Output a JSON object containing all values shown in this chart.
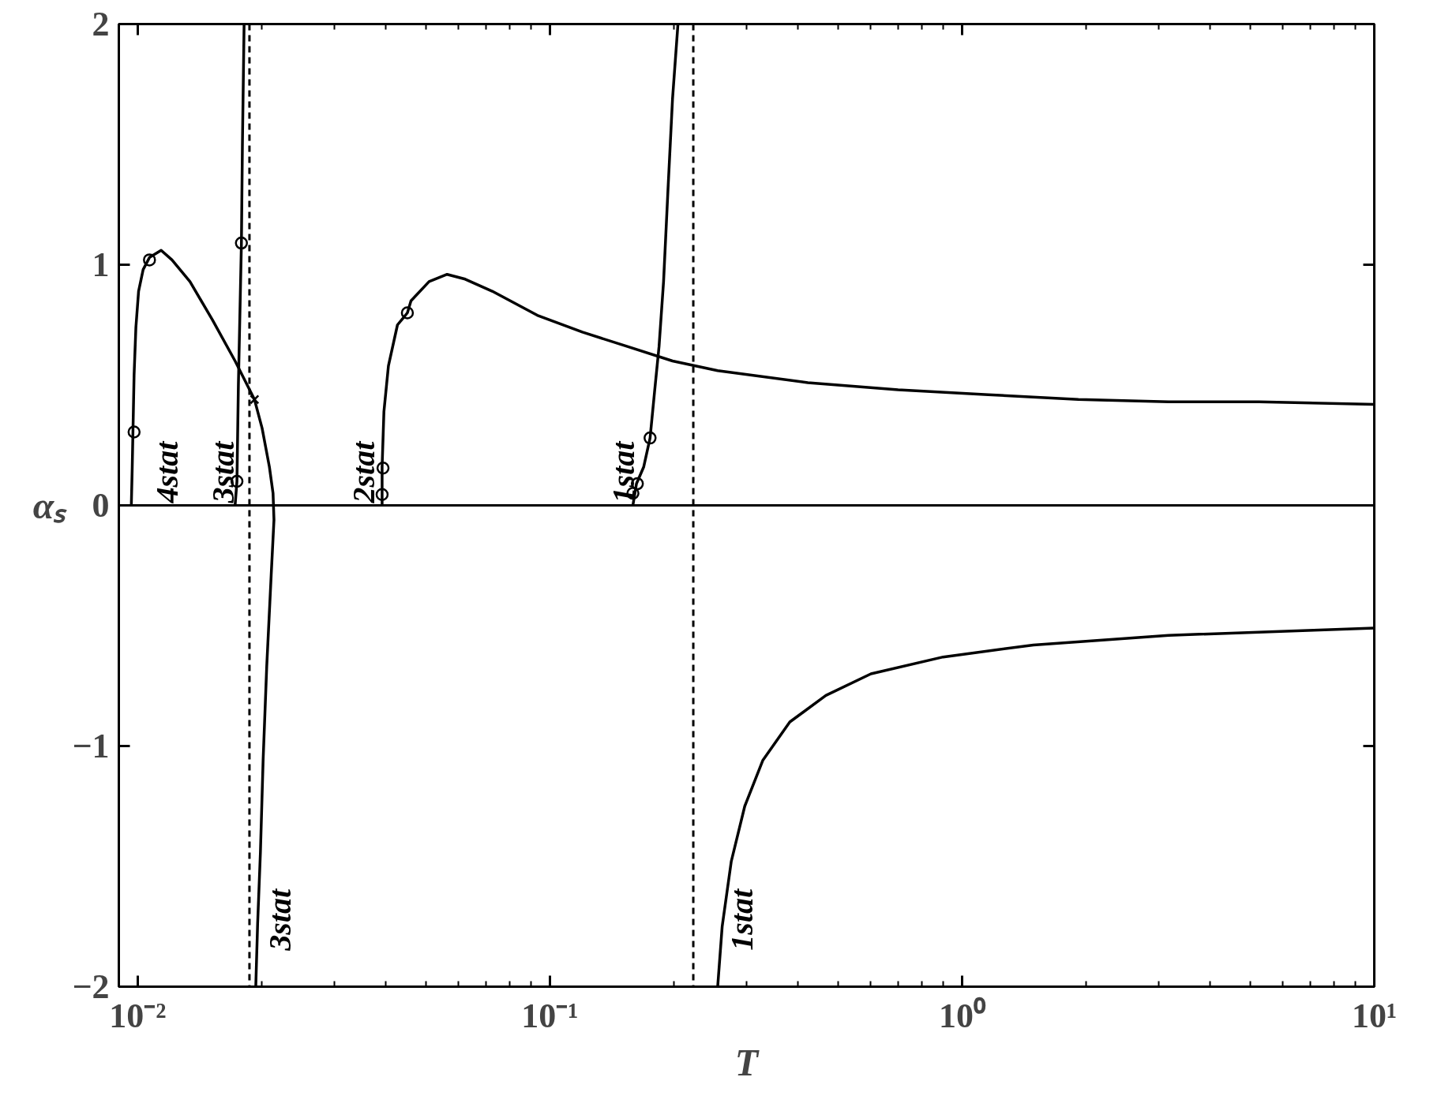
{
  "chart_data": {
    "type": "line",
    "xlabel": "T",
    "ylabel": "αₛ",
    "log": "x",
    "grid": false,
    "xlim": [
      0.009,
      10
    ],
    "ylim": [
      -2,
      2
    ],
    "xticks": [
      {
        "value": 0.01,
        "label": "10⁻²"
      },
      {
        "value": 0.1,
        "label": "10⁻¹"
      },
      {
        "value": 1,
        "label": "10⁰"
      },
      {
        "value": 10,
        "label": "10¹"
      }
    ],
    "yticks": [
      {
        "value": -2,
        "label": "−2"
      },
      {
        "value": -1,
        "label": "−1"
      },
      0,
      1,
      2
    ],
    "series": [
      {
        "color": "#000000",
        "marker": "none",
        "x": [
          0.00965,
          0.0097,
          0.00975,
          0.0098,
          0.0099,
          0.01005,
          0.01031,
          0.01068,
          0.0114,
          0.01211,
          0.01339,
          0.01519,
          0.01723,
          0.0192,
          0.02004,
          0.02087,
          0.0213,
          0.02141,
          0.02108,
          0.02056,
          0.02015,
          0.01985,
          0.01954,
          0.01934
        ],
        "values": [
          0,
          0.16,
          0.35,
          0.54,
          0.74,
          0.89,
          0.98,
          1.03,
          1.06,
          1.02,
          0.93,
          0.77,
          0.6,
          0.44,
          0.32,
          0.16,
          0.05,
          -0.06,
          -0.29,
          -0.67,
          -1.06,
          -1.44,
          -1.74,
          -2
        ]
      },
      {
        "color": "#000000",
        "marker": "none",
        "x": [
          0.01723,
          0.01741,
          0.01755,
          0.01785,
          0.01795,
          0.01812
        ],
        "values": [
          0,
          0.1,
          0.5,
          1.09,
          1.5,
          2
        ]
      },
      {
        "color": "#000000",
        "marker": "none",
        "x": [
          0.03917,
          0.03917,
          0.03957,
          0.04058,
          0.04268,
          0.04511,
          0.04603,
          0.05092,
          0.05632,
          0.0623,
          0.07244,
          0.09318,
          0.1199,
          0.1542,
          0.1984,
          0.2553,
          0.4225,
          0.6994,
          1.157,
          1.915,
          3.17,
          5.247,
          10
        ],
        "values": [
          0,
          0.16,
          0.39,
          0.58,
          0.75,
          0.8,
          0.85,
          0.93,
          0.96,
          0.94,
          0.89,
          0.79,
          0.72,
          0.66,
          0.6,
          0.56,
          0.51,
          0.48,
          0.46,
          0.44,
          0.43,
          0.43,
          0.42
        ]
      },
      {
        "color": "#000000",
        "marker": "none",
        "x": [
          0.159,
          0.1622,
          0.1689,
          0.175,
          0.1794,
          0.184,
          0.1887,
          0.1934,
          0.1984,
          0.2045
        ],
        "values": [
          0,
          0.09,
          0.16,
          0.28,
          0.47,
          0.66,
          0.93,
          1.31,
          1.69,
          2
        ]
      },
      {
        "color": "#000000",
        "marker": "none",
        "x": [
          0.2553,
          0.2618,
          0.2754,
          0.297,
          0.3284,
          0.382,
          0.4673,
          0.601,
          0.8996,
          1.489,
          3.17,
          10
        ],
        "values": [
          -2,
          -1.75,
          -1.48,
          -1.25,
          -1.06,
          -0.9,
          -0.79,
          -0.7,
          -0.63,
          -0.58,
          -0.54,
          -0.51
        ]
      },
      {
        "type": "scatter",
        "color": "#000000",
        "marker": "circle",
        "x": [
          0.0098,
          0.01068,
          0.01741,
          0.01785,
          0.03917,
          0.03937,
          0.04511,
          0.159,
          0.163,
          0.175
        ],
        "values": [
          0.305,
          1.02,
          0.1,
          1.09,
          0.045,
          0.155,
          0.8,
          0.05,
          0.09,
          0.28
        ]
      },
      {
        "type": "scatter",
        "color": "#000000",
        "marker": "cross",
        "x": [
          0.0192
        ],
        "values": [
          0.44
        ]
      }
    ],
    "ref_lines": [
      {
        "axis": "y",
        "value": 0,
        "line_style": "solid"
      },
      {
        "axis": "x",
        "value": 0.01867,
        "line_style": "dashed"
      },
      {
        "axis": "x",
        "value": 0.2228,
        "line_style": "dashed"
      }
    ],
    "annotations": [
      {
        "text": "4stat",
        "x": 0.01068,
        "y": 0.01
      },
      {
        "text": "3stat",
        "x": 0.01459,
        "y": 0.01
      },
      {
        "text": "2stat",
        "x": 0.032,
        "y": 0.01
      },
      {
        "text": "1stat",
        "x": 0.1366,
        "y": 0.01
      },
      {
        "text": "3stat",
        "x": 0.02,
        "y": -1.85
      },
      {
        "text": "1stat",
        "x": 0.265,
        "y": -1.85
      }
    ]
  }
}
